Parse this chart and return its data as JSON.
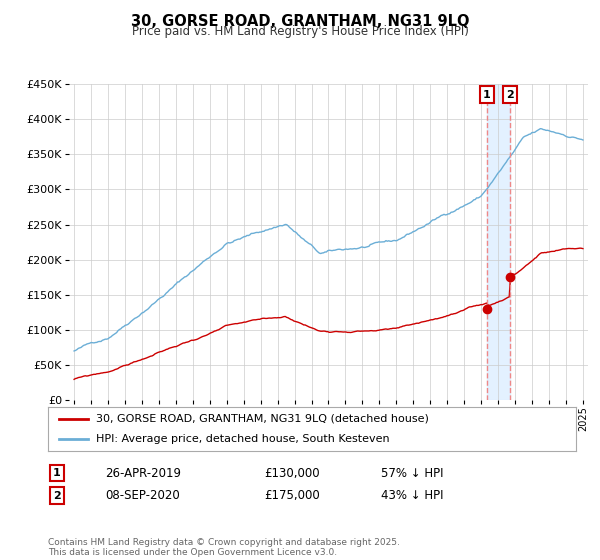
{
  "title": "30, GORSE ROAD, GRANTHAM, NG31 9LQ",
  "subtitle": "Price paid vs. HM Land Registry's House Price Index (HPI)",
  "legend_line1": "30, GORSE ROAD, GRANTHAM, NG31 9LQ (detached house)",
  "legend_line2": "HPI: Average price, detached house, South Kesteven",
  "transaction1_label": "1",
  "transaction1_date": "26-APR-2019",
  "transaction1_price": "£130,000",
  "transaction1_hpi": "57% ↓ HPI",
  "transaction2_label": "2",
  "transaction2_date": "08-SEP-2020",
  "transaction2_price": "£175,000",
  "transaction2_hpi": "43% ↓ HPI",
  "footer": "Contains HM Land Registry data © Crown copyright and database right 2025.\nThis data is licensed under the Open Government Licence v3.0.",
  "hpi_color": "#6baed6",
  "price_color": "#cc0000",
  "marker_color": "#cc0000",
  "vline_color": "#ee8888",
  "shade_color": "#ddeeff",
  "grid_color": "#cccccc",
  "bg_color": "#ffffff",
  "ylim": [
    0,
    450000
  ],
  "yticks": [
    0,
    50000,
    100000,
    150000,
    200000,
    250000,
    300000,
    350000,
    400000,
    450000
  ],
  "year_start": 1995,
  "year_end": 2025,
  "transaction1_year": 2019.32,
  "transaction2_year": 2020.69
}
